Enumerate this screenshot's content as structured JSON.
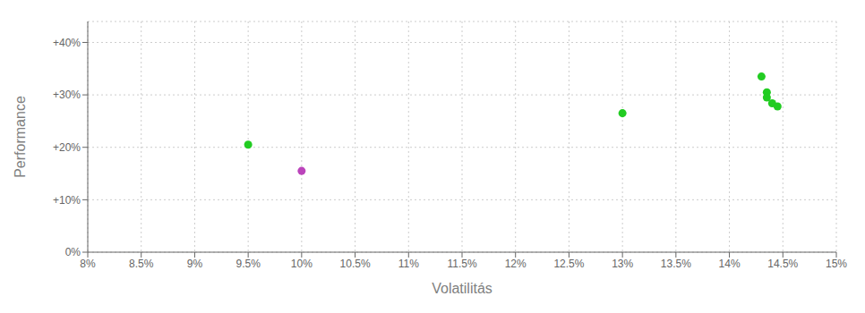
{
  "chart_data": {
    "type": "scatter",
    "xlabel": "Volatilitás",
    "ylabel": "Performance",
    "xlim": [
      0.08,
      0.15
    ],
    "ylim": [
      0.0,
      0.44
    ],
    "xticks": [
      {
        "value": 0.08,
        "label": "8%"
      },
      {
        "value": 0.085,
        "label": "8.5%"
      },
      {
        "value": 0.09,
        "label": "9%"
      },
      {
        "value": 0.095,
        "label": "9.5%"
      },
      {
        "value": 0.1,
        "label": "10%"
      },
      {
        "value": 0.105,
        "label": "10.5%"
      },
      {
        "value": 0.11,
        "label": "11%"
      },
      {
        "value": 0.115,
        "label": "11.5%"
      },
      {
        "value": 0.12,
        "label": "12%"
      },
      {
        "value": 0.125,
        "label": "12.5%"
      },
      {
        "value": 0.13,
        "label": "13%"
      },
      {
        "value": 0.135,
        "label": "13.5%"
      },
      {
        "value": 0.14,
        "label": "14%"
      },
      {
        "value": 0.145,
        "label": "14.5%"
      },
      {
        "value": 0.15,
        "label": "15%"
      }
    ],
    "yticks": [
      {
        "value": 0.0,
        "label": "0%"
      },
      {
        "value": 0.1,
        "label": "+10%"
      },
      {
        "value": 0.2,
        "label": "+20%"
      },
      {
        "value": 0.3,
        "label": "+30%"
      },
      {
        "value": 0.4,
        "label": "+40%"
      }
    ],
    "grid": true,
    "series": [
      {
        "color": "#22cc22",
        "x": [
          0.095,
          0.13,
          0.143,
          0.1435,
          0.1435,
          0.144,
          0.1445
        ],
        "values": [
          0.205,
          0.265,
          0.335,
          0.305,
          0.295,
          0.284,
          0.278
        ]
      },
      {
        "color": "#bb44bb",
        "x": [
          0.1
        ],
        "values": [
          0.155
        ]
      }
    ]
  }
}
